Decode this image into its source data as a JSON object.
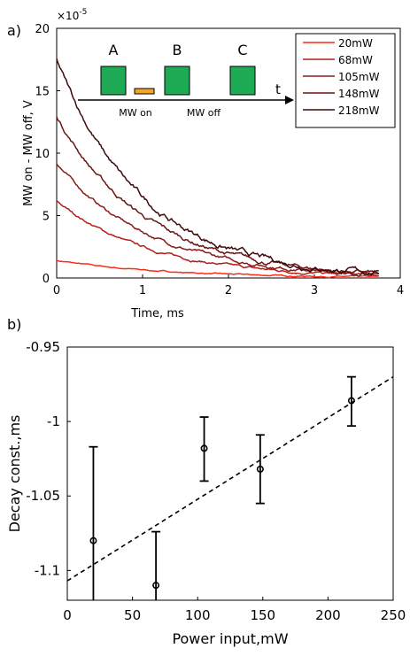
{
  "chart_data": [
    {
      "type": "line",
      "panel_label": "a)",
      "xlabel": "Time, ms",
      "ylabel": "MW on - MW off, V",
      "y_exponent": "×10",
      "y_exponent_power": "-5",
      "xlim": [
        0,
        4
      ],
      "ylim": [
        0,
        20
      ],
      "xticks": [
        "0",
        "1",
        "2",
        "3",
        "4"
      ],
      "yticks": [
        "0",
        "5",
        "10",
        "15",
        "20"
      ],
      "grid": false,
      "legend_position": "top-right",
      "series": [
        {
          "name": "20mW",
          "color": "#ff2a1a",
          "amplitude": 1.4,
          "tau": 1.3
        },
        {
          "name": "68mW",
          "color": "#b31e1a",
          "amplitude": 6.2,
          "tau": 1.1
        },
        {
          "name": "105mW",
          "color": "#8a1a1a",
          "amplitude": 9.2,
          "tau": 1.1
        },
        {
          "name": "148mW",
          "color": "#6a1414",
          "amplitude": 13.0,
          "tau": 1.05
        },
        {
          "name": "218mW",
          "color": "#3d0a0a",
          "amplitude": 17.5,
          "tau": 1.0
        }
      ],
      "inset": {
        "boxes": [
          "A",
          "B",
          "C"
        ],
        "labels": [
          "MW on",
          "MW off"
        ],
        "axis_label": "t",
        "box_color": "#1faa55",
        "pulse_color": "#f5a623"
      }
    },
    {
      "type": "scatter",
      "panel_label": "b)",
      "xlabel": "Power input,mW",
      "ylabel": "Decay const.,ms",
      "xlim": [
        0,
        250
      ],
      "ylim": [
        -1.12,
        -0.95
      ],
      "xticks": [
        "0",
        "50",
        "100",
        "150",
        "200",
        "250"
      ],
      "yticks": [
        "-0.95",
        "-1",
        "-1.05",
        "-1.1"
      ],
      "grid": false,
      "points": [
        {
          "x": 20,
          "y": -1.08,
          "err_low": -1.12,
          "err_high": -1.017
        },
        {
          "x": 68,
          "y": -1.11,
          "err_low": -1.12,
          "err_high": -1.074
        },
        {
          "x": 105,
          "y": -1.018,
          "err_low": -1.04,
          "err_high": -0.997
        },
        {
          "x": 148,
          "y": -1.032,
          "err_low": -1.055,
          "err_high": -1.009
        },
        {
          "x": 218,
          "y": -0.986,
          "err_low": -1.003,
          "err_high": -0.97
        }
      ],
      "fit_line": {
        "x": [
          0,
          250
        ],
        "y": [
          -1.107,
          -0.97
        ],
        "style": "dashed"
      }
    }
  ]
}
